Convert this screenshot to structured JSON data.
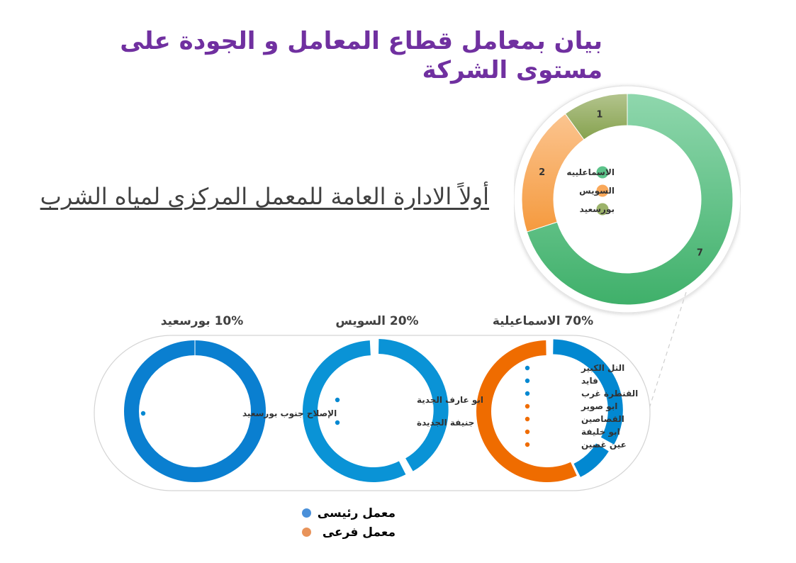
{
  "title": "بيان بمعامل قطاع المعامل و الجودة على مستوى الشركة",
  "subtitle": "أولاً الادارة العامة  للمعمل المركزى لمياه الشرب",
  "colors": {
    "ismailia": "#5cc38a",
    "suez": "#f9a85a",
    "portsaid": "#9cb36b",
    "main_lab": "#0288d1",
    "branch_lab": "#ef6c00",
    "title": "#7030a0"
  },
  "chart_data": [
    {
      "type": "pie",
      "variant": "donut",
      "categories": [
        "الاسماعلييه",
        "السويس",
        "بورسعيد"
      ],
      "values": [
        7,
        2,
        1
      ],
      "data_labels": [
        "7",
        "2",
        "1"
      ],
      "legend": [
        "الاسماعلييه",
        "السويس",
        "بورسعيد"
      ],
      "legend_placement": "center"
    },
    {
      "type": "pie",
      "variant": "donut",
      "header": "70%  الاسماعيلية",
      "series": [
        {
          "name": "معمل رئيسى",
          "values": [
            3
          ]
        },
        {
          "name": "معمل فرعى",
          "values": [
            4
          ]
        }
      ],
      "items": [
        {
          "label": "التل الكبير",
          "kind": "main"
        },
        {
          "label": "فايد",
          "kind": "main"
        },
        {
          "label": "القنطرة غرب",
          "kind": "main"
        },
        {
          "label": "ابو صوير",
          "kind": "branch"
        },
        {
          "label": "القصاصين",
          "kind": "branch"
        },
        {
          "label": "ابو خليفة",
          "kind": "branch"
        },
        {
          "label": "عين غصين",
          "kind": "branch"
        }
      ]
    },
    {
      "type": "pie",
      "variant": "donut",
      "header": "20% السويس",
      "series": [
        {
          "name": "معمل رئيسى",
          "values": [
            2
          ]
        }
      ],
      "items": [
        {
          "label": "ابو عارف الجدية",
          "kind": "main"
        },
        {
          "label": "جنيفة الجديدة",
          "kind": "main"
        }
      ]
    },
    {
      "type": "pie",
      "variant": "donut",
      "header": "10% بورسعيد",
      "series": [
        {
          "name": "معمل رئيسى",
          "values": [
            1
          ]
        }
      ],
      "items": [
        {
          "label": "الإصلاح جنوب بورسعيد",
          "kind": "main"
        }
      ]
    }
  ],
  "legend": [
    {
      "label": "معمل رئيسى",
      "color": "#4a90d9"
    },
    {
      "label": "معمل فرعى",
      "color": "#e8935a"
    }
  ]
}
